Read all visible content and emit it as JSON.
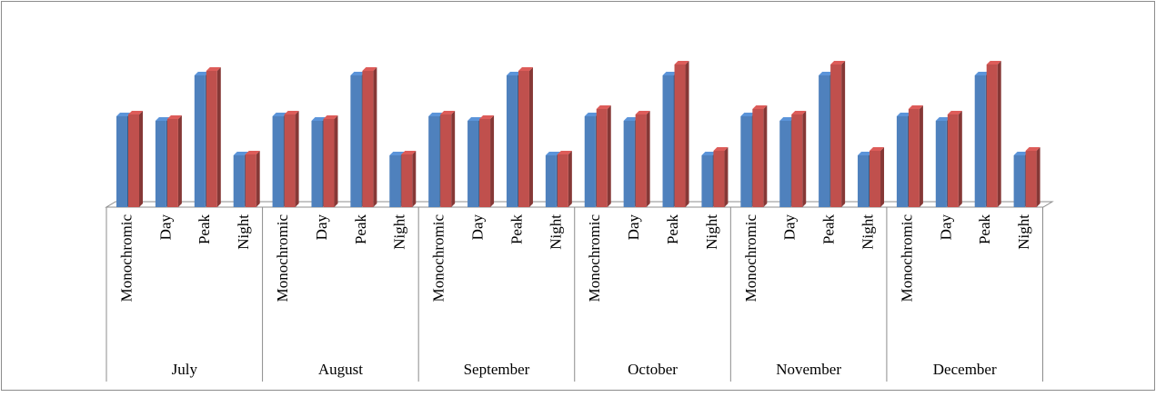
{
  "chart_data": {
    "type": "bar3d",
    "groups": [
      "July",
      "August",
      "September",
      "October",
      "November",
      "December"
    ],
    "categories": [
      "Monochromic",
      "Day",
      "Peak",
      "Night",
      "Monochromic",
      "Day",
      "Peak",
      "Night",
      "Monochromic",
      "Day",
      "Peak",
      "Night",
      "Monochromic",
      "Day",
      "Peak",
      "Night",
      "Monochromic",
      "Day",
      "Peak",
      "Night",
      "Monochromic",
      "Day",
      "Peak",
      "Night"
    ],
    "series": [
      {
        "color": "#4f81bd",
        "values": [
          100,
          95,
          145,
          57,
          100,
          95,
          145,
          57,
          100,
          95,
          145,
          57,
          100,
          95,
          145,
          57,
          100,
          95,
          145,
          57,
          100,
          95,
          145,
          57
        ]
      },
      {
        "color": "#c0504d",
        "values": [
          102,
          97,
          150,
          58,
          102,
          97,
          150,
          58,
          102,
          97,
          150,
          58,
          108,
          102,
          157,
          62,
          108,
          102,
          157,
          62,
          108,
          102,
          157,
          62
        ]
      }
    ]
  }
}
